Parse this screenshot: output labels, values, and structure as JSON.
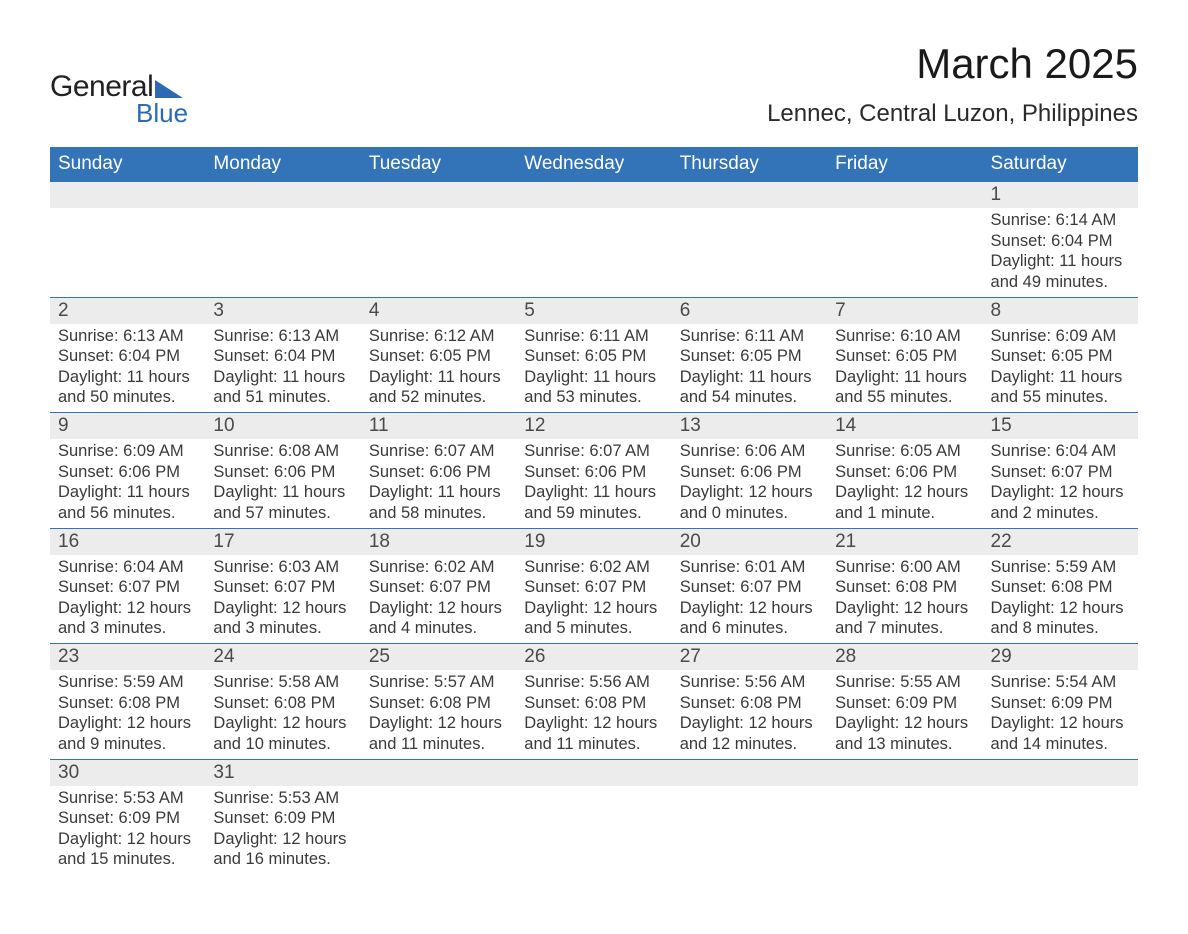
{
  "brand": {
    "general": "General",
    "blue": "Blue",
    "triangle_color": "#2c6bb3"
  },
  "header": {
    "title": "March 2025",
    "location": "Lennec, Central Luzon, Philippines"
  },
  "colors": {
    "header_bg": "#3373b7",
    "header_text": "#ffffff",
    "daynum_bg": "#ececec",
    "row_divider": "#3373b7",
    "body_text": "#3a3a3a"
  },
  "fonts": {
    "title_size_pt": 32,
    "location_size_pt": 18,
    "header_size_pt": 14,
    "daynum_size_pt": 14,
    "detail_size_pt": 12
  },
  "weekdays": [
    "Sunday",
    "Monday",
    "Tuesday",
    "Wednesday",
    "Thursday",
    "Friday",
    "Saturday"
  ],
  "weeks": [
    [
      null,
      null,
      null,
      null,
      null,
      null,
      {
        "n": "1",
        "sr": "Sunrise: 6:14 AM",
        "ss": "Sunset: 6:04 PM",
        "d1": "Daylight: 11 hours",
        "d2": "and 49 minutes."
      }
    ],
    [
      {
        "n": "2",
        "sr": "Sunrise: 6:13 AM",
        "ss": "Sunset: 6:04 PM",
        "d1": "Daylight: 11 hours",
        "d2": "and 50 minutes."
      },
      {
        "n": "3",
        "sr": "Sunrise: 6:13 AM",
        "ss": "Sunset: 6:04 PM",
        "d1": "Daylight: 11 hours",
        "d2": "and 51 minutes."
      },
      {
        "n": "4",
        "sr": "Sunrise: 6:12 AM",
        "ss": "Sunset: 6:05 PM",
        "d1": "Daylight: 11 hours",
        "d2": "and 52 minutes."
      },
      {
        "n": "5",
        "sr": "Sunrise: 6:11 AM",
        "ss": "Sunset: 6:05 PM",
        "d1": "Daylight: 11 hours",
        "d2": "and 53 minutes."
      },
      {
        "n": "6",
        "sr": "Sunrise: 6:11 AM",
        "ss": "Sunset: 6:05 PM",
        "d1": "Daylight: 11 hours",
        "d2": "and 54 minutes."
      },
      {
        "n": "7",
        "sr": "Sunrise: 6:10 AM",
        "ss": "Sunset: 6:05 PM",
        "d1": "Daylight: 11 hours",
        "d2": "and 55 minutes."
      },
      {
        "n": "8",
        "sr": "Sunrise: 6:09 AM",
        "ss": "Sunset: 6:05 PM",
        "d1": "Daylight: 11 hours",
        "d2": "and 55 minutes."
      }
    ],
    [
      {
        "n": "9",
        "sr": "Sunrise: 6:09 AM",
        "ss": "Sunset: 6:06 PM",
        "d1": "Daylight: 11 hours",
        "d2": "and 56 minutes."
      },
      {
        "n": "10",
        "sr": "Sunrise: 6:08 AM",
        "ss": "Sunset: 6:06 PM",
        "d1": "Daylight: 11 hours",
        "d2": "and 57 minutes."
      },
      {
        "n": "11",
        "sr": "Sunrise: 6:07 AM",
        "ss": "Sunset: 6:06 PM",
        "d1": "Daylight: 11 hours",
        "d2": "and 58 minutes."
      },
      {
        "n": "12",
        "sr": "Sunrise: 6:07 AM",
        "ss": "Sunset: 6:06 PM",
        "d1": "Daylight: 11 hours",
        "d2": "and 59 minutes."
      },
      {
        "n": "13",
        "sr": "Sunrise: 6:06 AM",
        "ss": "Sunset: 6:06 PM",
        "d1": "Daylight: 12 hours",
        "d2": "and 0 minutes."
      },
      {
        "n": "14",
        "sr": "Sunrise: 6:05 AM",
        "ss": "Sunset: 6:06 PM",
        "d1": "Daylight: 12 hours",
        "d2": "and 1 minute."
      },
      {
        "n": "15",
        "sr": "Sunrise: 6:04 AM",
        "ss": "Sunset: 6:07 PM",
        "d1": "Daylight: 12 hours",
        "d2": "and 2 minutes."
      }
    ],
    [
      {
        "n": "16",
        "sr": "Sunrise: 6:04 AM",
        "ss": "Sunset: 6:07 PM",
        "d1": "Daylight: 12 hours",
        "d2": "and 3 minutes."
      },
      {
        "n": "17",
        "sr": "Sunrise: 6:03 AM",
        "ss": "Sunset: 6:07 PM",
        "d1": "Daylight: 12 hours",
        "d2": "and 3 minutes."
      },
      {
        "n": "18",
        "sr": "Sunrise: 6:02 AM",
        "ss": "Sunset: 6:07 PM",
        "d1": "Daylight: 12 hours",
        "d2": "and 4 minutes."
      },
      {
        "n": "19",
        "sr": "Sunrise: 6:02 AM",
        "ss": "Sunset: 6:07 PM",
        "d1": "Daylight: 12 hours",
        "d2": "and 5 minutes."
      },
      {
        "n": "20",
        "sr": "Sunrise: 6:01 AM",
        "ss": "Sunset: 6:07 PM",
        "d1": "Daylight: 12 hours",
        "d2": "and 6 minutes."
      },
      {
        "n": "21",
        "sr": "Sunrise: 6:00 AM",
        "ss": "Sunset: 6:08 PM",
        "d1": "Daylight: 12 hours",
        "d2": "and 7 minutes."
      },
      {
        "n": "22",
        "sr": "Sunrise: 5:59 AM",
        "ss": "Sunset: 6:08 PM",
        "d1": "Daylight: 12 hours",
        "d2": "and 8 minutes."
      }
    ],
    [
      {
        "n": "23",
        "sr": "Sunrise: 5:59 AM",
        "ss": "Sunset: 6:08 PM",
        "d1": "Daylight: 12 hours",
        "d2": "and 9 minutes."
      },
      {
        "n": "24",
        "sr": "Sunrise: 5:58 AM",
        "ss": "Sunset: 6:08 PM",
        "d1": "Daylight: 12 hours",
        "d2": "and 10 minutes."
      },
      {
        "n": "25",
        "sr": "Sunrise: 5:57 AM",
        "ss": "Sunset: 6:08 PM",
        "d1": "Daylight: 12 hours",
        "d2": "and 11 minutes."
      },
      {
        "n": "26",
        "sr": "Sunrise: 5:56 AM",
        "ss": "Sunset: 6:08 PM",
        "d1": "Daylight: 12 hours",
        "d2": "and 11 minutes."
      },
      {
        "n": "27",
        "sr": "Sunrise: 5:56 AM",
        "ss": "Sunset: 6:08 PM",
        "d1": "Daylight: 12 hours",
        "d2": "and 12 minutes."
      },
      {
        "n": "28",
        "sr": "Sunrise: 5:55 AM",
        "ss": "Sunset: 6:09 PM",
        "d1": "Daylight: 12 hours",
        "d2": "and 13 minutes."
      },
      {
        "n": "29",
        "sr": "Sunrise: 5:54 AM",
        "ss": "Sunset: 6:09 PM",
        "d1": "Daylight: 12 hours",
        "d2": "and 14 minutes."
      }
    ],
    [
      {
        "n": "30",
        "sr": "Sunrise: 5:53 AM",
        "ss": "Sunset: 6:09 PM",
        "d1": "Daylight: 12 hours",
        "d2": "and 15 minutes."
      },
      {
        "n": "31",
        "sr": "Sunrise: 5:53 AM",
        "ss": "Sunset: 6:09 PM",
        "d1": "Daylight: 12 hours",
        "d2": "and 16 minutes."
      },
      null,
      null,
      null,
      null,
      null
    ]
  ]
}
